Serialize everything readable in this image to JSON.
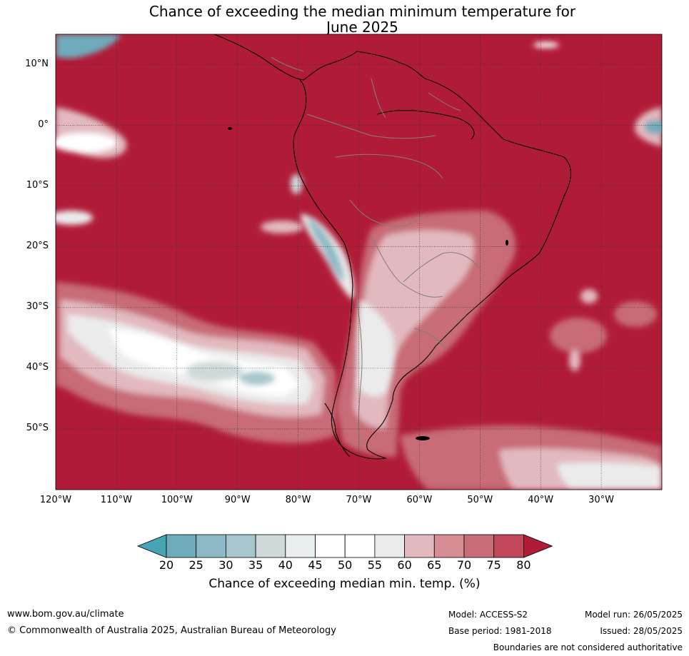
{
  "title_line1": "Chance of exceeding the median minimum temperature for",
  "title_line2": "June 2025",
  "map": {
    "lat_labels": [
      {
        "text": "10°N",
        "lat": 10
      },
      {
        "text": "0°",
        "lat": 0
      },
      {
        "text": "10°S",
        "lat": -10
      },
      {
        "text": "20°S",
        "lat": -20
      },
      {
        "text": "30°S",
        "lat": -30
      },
      {
        "text": "40°S",
        "lat": -40
      },
      {
        "text": "50°S",
        "lat": -50
      }
    ],
    "lon_labels": [
      {
        "text": "120°W",
        "lon": -120
      },
      {
        "text": "110°W",
        "lon": -110
      },
      {
        "text": "100°W",
        "lon": -100
      },
      {
        "text": "90°W",
        "lon": -90
      },
      {
        "text": "80°W",
        "lon": -80
      },
      {
        "text": "70°W",
        "lon": -70
      },
      {
        "text": "60°W",
        "lon": -60
      },
      {
        "text": "50°W",
        "lon": -50
      },
      {
        "text": "40°W",
        "lon": -40
      },
      {
        "text": "30°W",
        "lon": -30
      }
    ],
    "extent": {
      "lon_min": -120,
      "lon_max": -20,
      "lat_min": -60,
      "lat_max": 15
    },
    "background_color": "#b01c38"
  },
  "colorbar": {
    "ticks": [
      "20",
      "25",
      "30",
      "35",
      "40",
      "45",
      "50",
      "55",
      "60",
      "65",
      "70",
      "75",
      "80"
    ],
    "colors": [
      "#48a4b4",
      "#6fabbb",
      "#8db9c6",
      "#a8c7cd",
      "#cfd9da",
      "#e9eff1",
      "#ffffff",
      "#ffffff",
      "#ebebeb",
      "#e2b9bf",
      "#d58c95",
      "#c86c77",
      "#c0485a",
      "#b01c38"
    ],
    "label": "Chance of exceeding median min. temp. (%)"
  },
  "footer": {
    "website": "www.bom.gov.au/climate",
    "copyright": "© Commonwealth of Australia 2025, Australian Bureau of Meteorology",
    "model": "Model: ACCESS-S2",
    "base_period": "Base period: 1981-2018",
    "model_run": "Model run: 26/05/2025",
    "issued": "Issued: 28/05/2025",
    "disclaimer": "Boundaries are not considered authoritative"
  }
}
